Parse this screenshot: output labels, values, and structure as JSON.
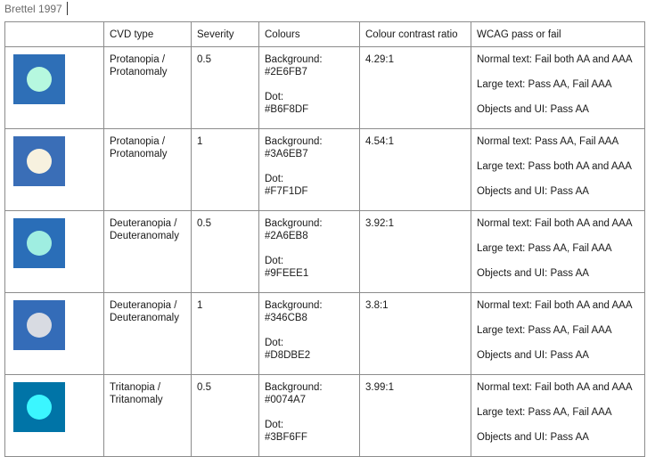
{
  "caption": "Brettel 1997",
  "headers": [
    "",
    "CVD type",
    "Severity",
    "Colours",
    "Colour contrast ratio",
    "WCAG pass or fail"
  ],
  "rows": [
    {
      "cvd_type_line1": "Protanopia /",
      "cvd_type_line2": "Protanomaly",
      "severity": "0.5",
      "background_label": "Background:",
      "background_hex": "#2E6FB7",
      "dot_label": "Dot:",
      "dot_hex": "#B6F8DF",
      "ratio": "4.29:1",
      "wcag": [
        "Normal text: Fail both AA and AAA",
        "Large text: Pass AA, Fail AAA",
        "Objects and UI: Pass AA"
      ]
    },
    {
      "cvd_type_line1": "Protanopia /",
      "cvd_type_line2": "Protanomaly",
      "severity": "1",
      "background_label": "Background:",
      "background_hex": "#3A6EB7",
      "dot_label": "Dot:",
      "dot_hex": "#F7F1DF",
      "ratio": "4.54:1",
      "wcag": [
        "Normal text: Pass AA, Fail AAA",
        "Large text: Pass both AA and AAA",
        "Objects and UI: Pass AA"
      ]
    },
    {
      "cvd_type_line1": "Deuteranopia /",
      "cvd_type_line2": "Deuteranomaly",
      "severity": "0.5",
      "background_label": "Background:",
      "background_hex": "#2A6EB8",
      "dot_label": "Dot:",
      "dot_hex": "#9FEEE1",
      "ratio": "3.92:1",
      "wcag": [
        "Normal text: Fail both AA and AAA",
        "Large text: Pass AA, Fail AAA",
        "Objects and UI: Pass AA"
      ]
    },
    {
      "cvd_type_line1": "Deuteranopia /",
      "cvd_type_line2": "Deuteranomaly",
      "severity": "1",
      "background_label": "Background:",
      "background_hex": "#346CB8",
      "dot_label": "Dot:",
      "dot_hex": "#D8DBE2",
      "ratio": "3.8:1",
      "wcag": [
        "Normal text: Fail both AA and AAA",
        "Large text: Pass AA, Fail AAA",
        "Objects and UI: Pass AA"
      ]
    },
    {
      "cvd_type_line1": "Tritanopia /",
      "cvd_type_line2": "Tritanomaly",
      "severity": "0.5",
      "background_label": "Background:",
      "background_hex": "#0074A7",
      "dot_label": "Dot:",
      "dot_hex": "#3BF6FF",
      "ratio": "3.99:1",
      "wcag": [
        "Normal text: Fail both AA and AAA",
        "Large text: Pass AA, Fail AAA",
        "Objects and UI: Pass AA"
      ]
    }
  ]
}
